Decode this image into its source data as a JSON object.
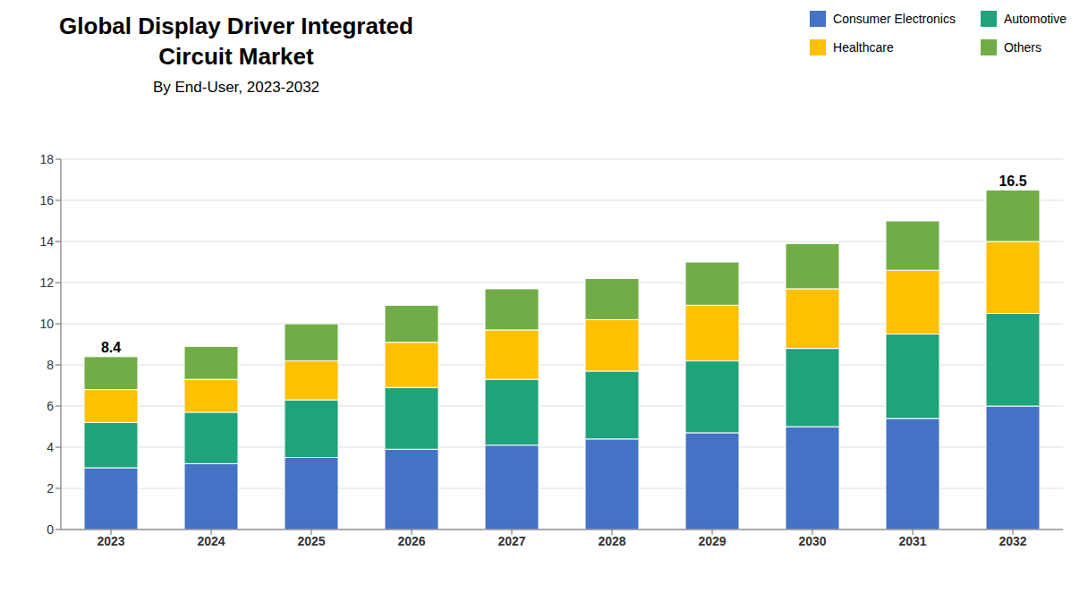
{
  "chart_data": {
    "type": "bar",
    "title": "Global Display Driver Integrated\nCircuit Market",
    "subtitle": "By End-User, 2023-2032",
    "categories": [
      "2023",
      "2024",
      "2025",
      "2026",
      "2027",
      "2028",
      "2029",
      "2030",
      "2031",
      "2032"
    ],
    "series": [
      {
        "name": "Consumer Electronics",
        "color": "#4472C4",
        "values": [
          3.0,
          3.2,
          3.5,
          3.9,
          4.1,
          4.4,
          4.7,
          5.0,
          5.4,
          6.0
        ]
      },
      {
        "name": "Automotive",
        "color": "#1FA37A",
        "values": [
          2.2,
          2.5,
          2.8,
          3.0,
          3.2,
          3.3,
          3.5,
          3.8,
          4.1,
          4.5
        ]
      },
      {
        "name": "Healthcare",
        "color": "#FFC000",
        "values": [
          1.6,
          1.6,
          1.9,
          2.2,
          2.4,
          2.5,
          2.7,
          2.9,
          3.1,
          3.5
        ]
      },
      {
        "name": "Others",
        "color": "#70AD47",
        "values": [
          1.6,
          1.6,
          1.8,
          1.8,
          2.0,
          2.0,
          2.1,
          2.2,
          2.4,
          2.5
        ]
      }
    ],
    "annotations": [
      {
        "text": "8.4",
        "x": "2023",
        "y": 8.4
      },
      {
        "text": "16.5",
        "x": "2032",
        "y": 16.5
      }
    ],
    "ylim": [
      0,
      18
    ],
    "yticks": [
      0,
      2,
      4,
      6,
      8,
      10,
      12,
      14,
      16,
      18
    ],
    "stacked": true,
    "grid": true,
    "legend": "upper right"
  }
}
